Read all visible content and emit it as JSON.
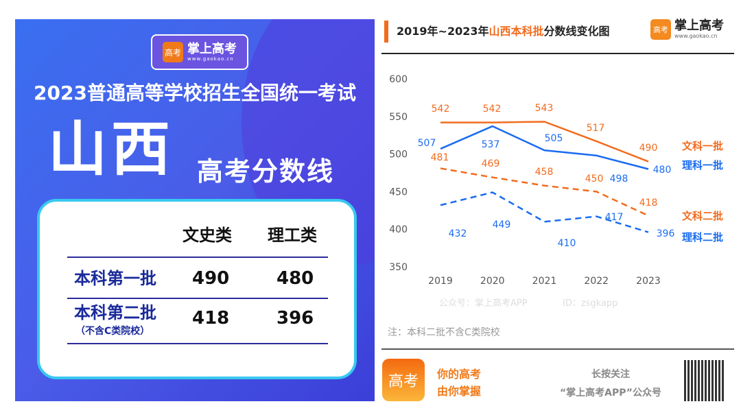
{
  "left": {
    "logo_name": "掌上高考",
    "logo_url": "www.gaokao.cn",
    "logo_icon": "高考",
    "title": "2023普通高等学校招生全国统一考试",
    "province": "山西",
    "subtitle": "高考分数线",
    "table": {
      "headers": [
        "文史类",
        "理工类"
      ],
      "rows": [
        {
          "label": "本科第一批",
          "note": "",
          "values": [
            "490",
            "480"
          ]
        },
        {
          "label": "本科第二批",
          "note": "（不含C类院校）",
          "values": [
            "418",
            "396"
          ]
        }
      ]
    }
  },
  "header": {
    "prefix": "2019年~2023年",
    "highlight": "山西本科批",
    "suffix": "分数线变化图",
    "brand": "掌上高考",
    "brand_url": "www.gaokao.cn",
    "brand_icon": "高考"
  },
  "watermark": [
    "公众号：掌上高考APP",
    "ID：zsgkapp"
  ],
  "chart_data": {
    "type": "line",
    "x": [
      2019,
      2020,
      2021,
      2022,
      2023
    ],
    "ylim": [
      350,
      600
    ],
    "yticks": [
      350,
      400,
      450,
      500,
      550,
      600
    ],
    "series": [
      {
        "name": "文科一批",
        "values": [
          542,
          542,
          543,
          517,
          490
        ],
        "color": "#f26b1d",
        "dash": false,
        "labels": [
          "542",
          "542",
          "543",
          "517",
          "490"
        ]
      },
      {
        "name": "理科一批",
        "values": [
          507,
          537,
          505,
          498,
          480
        ],
        "color": "#1a6cf0",
        "dash": false,
        "labels": [
          "507",
          "537",
          "505",
          "498",
          "480"
        ]
      },
      {
        "name": "文科二批",
        "values": [
          481,
          469,
          458,
          450,
          418
        ],
        "color": "#f26b1d",
        "dash": true,
        "labels": [
          "481",
          "469",
          "458",
          "450",
          "418"
        ]
      },
      {
        "name": "理科二批",
        "values": [
          432,
          449,
          410,
          417,
          396
        ],
        "color": "#1a6cf0",
        "dash": true,
        "labels": [
          "432",
          "449",
          "410",
          "417",
          "396"
        ]
      }
    ]
  },
  "note": "注：本科二批不含C类院校",
  "footer": {
    "icon": "高考",
    "slogan": [
      "你的高考",
      "由你掌握"
    ],
    "follow": [
      "长按关注",
      "“掌上高考APP”公众号"
    ]
  }
}
